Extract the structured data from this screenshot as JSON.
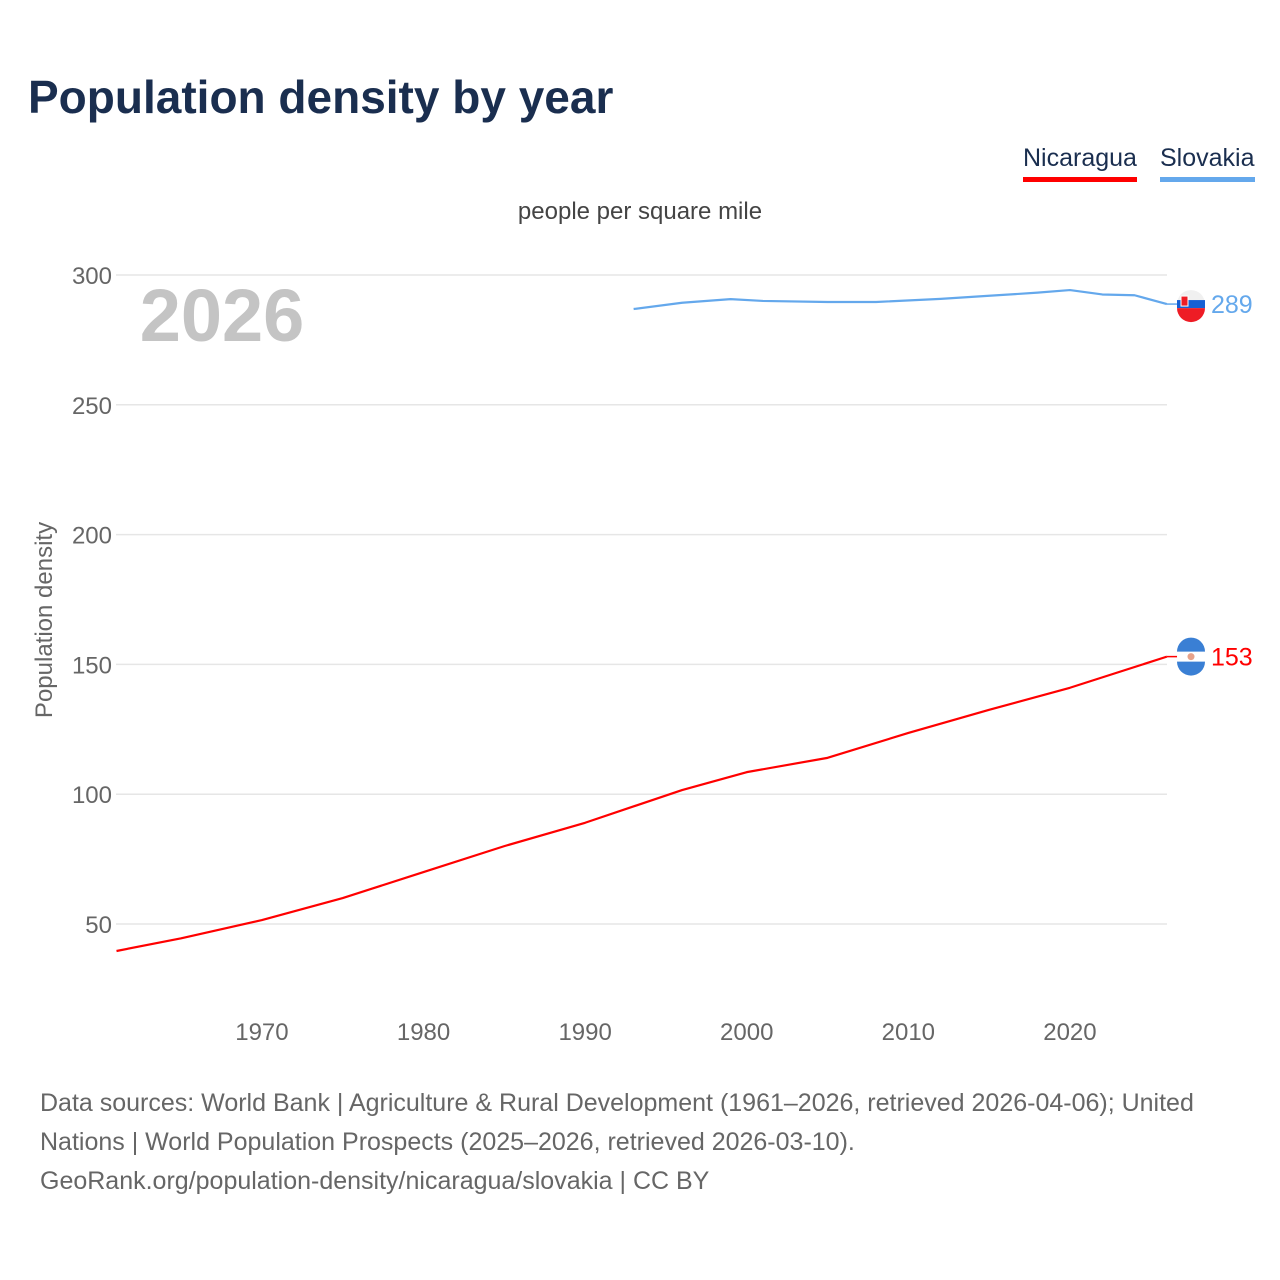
{
  "title": "Population density by year",
  "unit_label": "people per square mile",
  "year_watermark": "2026",
  "source_text": "Data sources: World Bank | Agriculture & Rural Development (1961–2026, retrieved 2026-04-06); United Nations | World Population Prospects (2025–2026, retrieved 2026-03-10).",
  "source_url": "GeoRank.org/population-density/nicaragua/slovakia | CC BY",
  "chart_data": {
    "type": "line",
    "title": "Population density by year",
    "xlabel": "",
    "ylabel": "Population density",
    "xlim": [
      1961,
      2026
    ],
    "ylim": [
      30,
      310
    ],
    "yticks": [
      50,
      100,
      150,
      200,
      250,
      300
    ],
    "xticks": [
      1970,
      1980,
      1990,
      2000,
      2010,
      2020
    ],
    "grid": true,
    "legend_position": "top-right",
    "series": [
      {
        "name": "Nicaragua",
        "color": "#ff0000",
        "end_label": "153",
        "flag": "nicaragua-flag",
        "x": [
          1961,
          1965,
          1970,
          1975,
          1980,
          1985,
          1990,
          1996,
          2000,
          2005,
          2010,
          2015,
          2020,
          2026
        ],
        "y": [
          39.6,
          44.5,
          51.5,
          60,
          70,
          80,
          89,
          101.6,
          108.5,
          114,
          123.6,
          132.5,
          141,
          153
        ]
      },
      {
        "name": "Slovakia",
        "color": "#64a8ec",
        "end_label": "289",
        "flag": "slovakia-flag",
        "x": [
          1993,
          1996,
          1999,
          2001,
          2005,
          2008,
          2012,
          2015,
          2018,
          2020,
          2022,
          2024,
          2026
        ],
        "y": [
          286.9,
          289.3,
          290.7,
          290,
          289.6,
          289.6,
          290.8,
          292,
          293.2,
          294.2,
          292.5,
          292.2,
          288.8
        ]
      }
    ]
  }
}
